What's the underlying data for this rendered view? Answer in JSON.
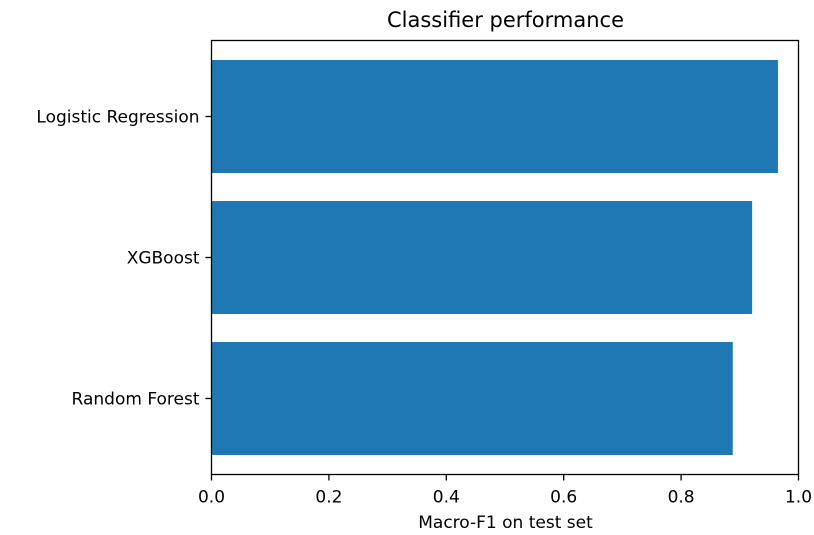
{
  "chart_data": {
    "type": "bar",
    "orientation": "horizontal",
    "title": "Classifier performance",
    "xlabel": "Macro-F1 on test set",
    "ylabel": "",
    "categories": [
      "Logistic Regression",
      "XGBoost",
      "Random Forest"
    ],
    "values": [
      0.965,
      0.921,
      0.888
    ],
    "xlim": [
      0,
      1.0
    ],
    "xticks": [
      "0.0",
      "0.2",
      "0.4",
      "0.6",
      "0.8",
      "1.0"
    ],
    "grid": false,
    "bar_color": "#1f77b4"
  }
}
